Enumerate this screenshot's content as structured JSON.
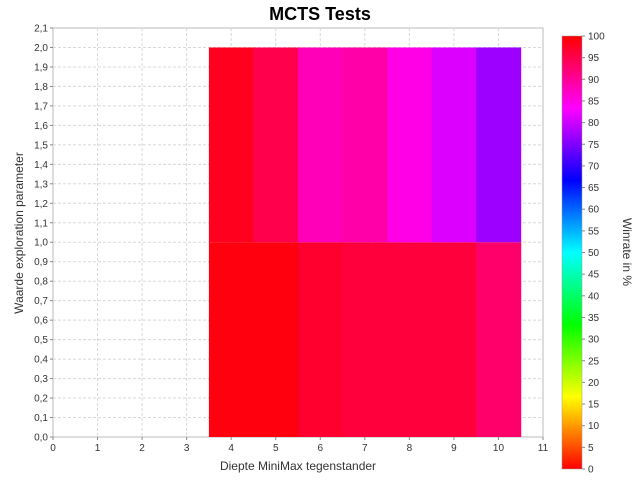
{
  "chart_data": {
    "type": "heatmap",
    "title": "MCTS Tests",
    "xlabel": "Diepte MiniMax tegenstander",
    "ylabel": "Waarde exploration parameter",
    "xlim": [
      0,
      11
    ],
    "ylim": [
      0,
      2.1
    ],
    "x_ticks": [
      "0",
      "1",
      "2",
      "3",
      "4",
      "5",
      "6",
      "7",
      "8",
      "9",
      "10",
      "11"
    ],
    "y_ticks": [
      "0,0",
      "0,1",
      "0,2",
      "0,3",
      "0,4",
      "0,5",
      "0,6",
      "0,7",
      "0,8",
      "0,9",
      "1,0",
      "1,1",
      "1,2",
      "1,3",
      "1,4",
      "1,5",
      "1,6",
      "1,7",
      "1,8",
      "1,9",
      "2,0",
      "2,1"
    ],
    "grid": true,
    "cells": [
      {
        "x": 4,
        "y_range": [
          0.0,
          1.0
        ],
        "value": 99
      },
      {
        "x": 5,
        "y_range": [
          0.0,
          1.0
        ],
        "value": 99
      },
      {
        "x": 6,
        "y_range": [
          0.0,
          1.0
        ],
        "value": 97
      },
      {
        "x": 7,
        "y_range": [
          0.0,
          1.0
        ],
        "value": 96
      },
      {
        "x": 8,
        "y_range": [
          0.0,
          1.0
        ],
        "value": 96
      },
      {
        "x": 9,
        "y_range": [
          0.0,
          1.0
        ],
        "value": 96
      },
      {
        "x": 10,
        "y_range": [
          0.0,
          1.0
        ],
        "value": 93
      },
      {
        "x": 4,
        "y_range": [
          1.0,
          2.0
        ],
        "value": 98
      },
      {
        "x": 5,
        "y_range": [
          1.0,
          2.0
        ],
        "value": 95
      },
      {
        "x": 6,
        "y_range": [
          1.0,
          2.0
        ],
        "value": 88
      },
      {
        "x": 7,
        "y_range": [
          1.0,
          2.0
        ],
        "value": 89
      },
      {
        "x": 8,
        "y_range": [
          1.0,
          2.0
        ],
        "value": 85
      },
      {
        "x": 9,
        "y_range": [
          1.0,
          2.0
        ],
        "value": 81
      },
      {
        "x": 10,
        "y_range": [
          1.0,
          2.0
        ],
        "value": 77
      }
    ],
    "colorbar": {
      "label": "Winrate in %",
      "range": [
        0,
        100
      ],
      "ticks": [
        "0",
        "5",
        "10",
        "15",
        "20",
        "25",
        "30",
        "35",
        "40",
        "45",
        "50",
        "55",
        "60",
        "65",
        "70",
        "75",
        "80",
        "85",
        "90",
        "95",
        "100"
      ],
      "colormap": "hue: 0 red → yellow → green → cyan → blue → magenta → 100 red"
    }
  }
}
